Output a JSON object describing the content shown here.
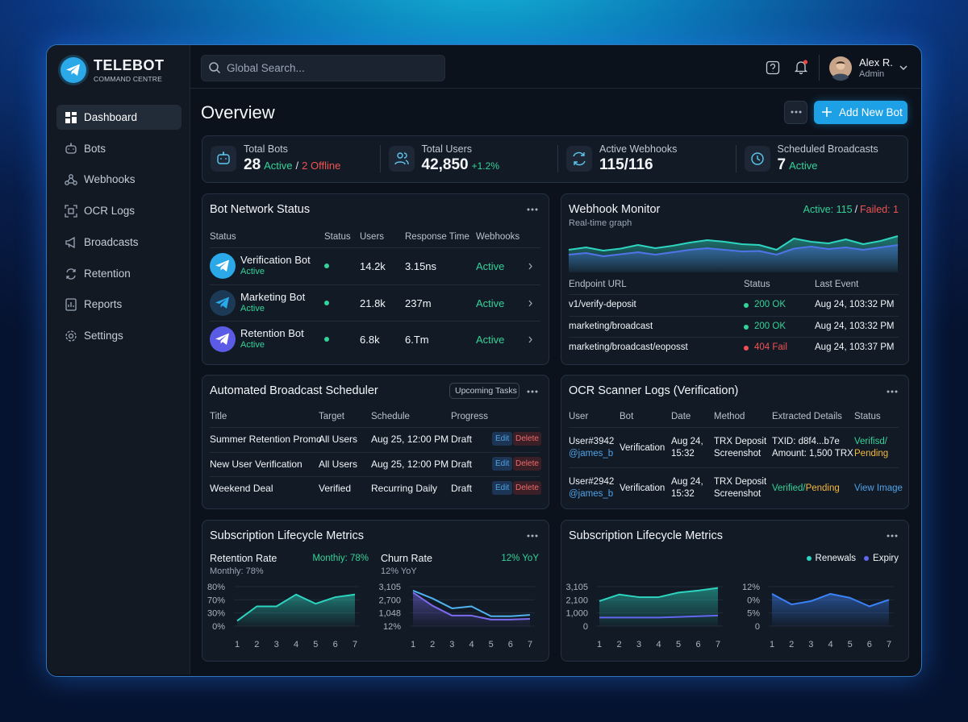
{
  "sidebar": {
    "brand": "TELEBOT",
    "tagline": "COMMAND CENTRE",
    "nav": [
      "Dashboard",
      "Bots",
      "Webhooks",
      "OCR Logs",
      "Broadcasts",
      "Retention",
      "Reports",
      "Settings"
    ],
    "active": 0
  },
  "topbar": {
    "search_placeholder": "Global Search...",
    "user": {
      "name": "Alex R.",
      "role": "Admin"
    }
  },
  "header": {
    "title": "Overview",
    "button": "Add New Bot"
  },
  "stats": [
    {
      "label": "Total Bots",
      "value": "28",
      "status": "Active",
      "separator": "/",
      "note": "2 Offline"
    },
    {
      "label": "Total Users",
      "value": "42,850",
      "change": "+1.2%"
    },
    {
      "label": "Active Webhooks",
      "value": "115/116"
    },
    {
      "label": "Scheduled Broadcasts",
      "value": "7",
      "status": "Active"
    }
  ],
  "bot_network": {
    "title": "Bot Network Status",
    "columns": [
      "Status",
      "Status",
      "Users",
      "Response Time",
      "Webhooks"
    ],
    "rows": [
      {
        "name": "Verification Bot",
        "status": "Active",
        "users": "14.2k",
        "response_time": "3.15ns",
        "webhook": "Active",
        "color": "#2aa8e8"
      },
      {
        "name": "Marketing Bot",
        "status": "Active",
        "users": "21.8k",
        "response_time": "237m",
        "webhook": "Active",
        "color": "#1c3a56"
      },
      {
        "name": "Retention Bot",
        "status": "Active",
        "users": "6.8k",
        "response_time": "6.Tm",
        "webhook": "Active",
        "color": "#5b5be6"
      }
    ]
  },
  "webhook_monitor": {
    "title": "Webhook Monitor",
    "subtitle": "Real-time graph",
    "active": "Active: 115",
    "separator": "/",
    "failed": "Failed: 1",
    "graph": {
      "ylim": [
        0,
        10
      ],
      "series": [
        {
          "color": "#2dd4bf",
          "fill": true,
          "values": [
            5.6,
            6.2,
            5.4,
            5.9,
            6.8,
            6.0,
            6.6,
            7.4,
            8.0,
            7.6,
            7.0,
            6.8,
            5.6,
            8.4,
            7.6,
            7.2,
            8.2,
            7.0,
            7.8,
            9.0
          ]
        },
        {
          "color": "#4f74e8",
          "fill": true,
          "values": [
            4.4,
            4.8,
            4.0,
            4.5,
            5.0,
            4.4,
            5.0,
            5.6,
            6.0,
            5.6,
            5.2,
            5.3,
            4.4,
            5.9,
            6.4,
            5.8,
            6.2,
            5.6,
            6.2,
            6.8
          ]
        }
      ]
    },
    "columns": [
      "Endpoint URL",
      "Status",
      "Last Event"
    ],
    "rows": [
      {
        "endpoint": "v1/verify-deposit",
        "status": "200 OK",
        "status_color": "#34d399",
        "last_event": "Aug 24, 103:32 PM"
      },
      {
        "endpoint": "marketing/broadcast",
        "status": "200 OK",
        "status_color": "#34d399",
        "last_event": "Aug 24, 103:32 PM"
      },
      {
        "endpoint": "marketing/broadcast/eoposst",
        "status": "404 Fail",
        "status_color": "#f05252",
        "last_event": "Aug 24, 103:37 PM"
      }
    ]
  },
  "scheduler": {
    "title": "Automated Broadcast Scheduler",
    "badge": "Upcoming Tasks",
    "columns": [
      "Title",
      "Target",
      "Schedule",
      "Progress"
    ],
    "actions": [
      "Edit",
      "Delete"
    ],
    "rows": [
      [
        "Summer Retention Promo",
        "All Users",
        "Aug 25, 12:00 PM",
        "Draft"
      ],
      [
        "New User Verification",
        "All Users",
        "Aug 25, 12:00 PM",
        "Draft"
      ],
      [
        "Weekend Deal",
        "Verified",
        "Recurring Daily",
        "Draft"
      ]
    ]
  },
  "ocr_logs": {
    "title": "OCR Scanner Logs (Verification)",
    "columns": [
      "User",
      "Bot",
      "Date",
      "Method",
      "Extracted Details",
      "Status"
    ],
    "rows": [
      {
        "cells": [
          [
            [
              "User#3942"
            ],
            [
              {
                "text": "@james_b",
                "color": "#4fa3e8"
              }
            ]
          ],
          [
            [
              "Verification"
            ]
          ],
          [
            [
              "Aug 24,"
            ],
            [
              "15:32"
            ]
          ],
          [
            [
              "TRX Deposit"
            ],
            [
              "Screenshot"
            ]
          ],
          [
            [
              "TXID: d8f4...b7e"
            ],
            [
              "Amount: 1,500 TRX"
            ]
          ],
          [
            [
              {
                "text": "Verifisd/",
                "color": "#34d399"
              }
            ],
            [
              {
                "text": "Pending",
                "color": "#f5b83d"
              }
            ]
          ]
        ]
      },
      {
        "cells": [
          [
            [
              "User#2942"
            ],
            [
              {
                "text": "@james_b",
                "color": "#4fa3e8"
              }
            ]
          ],
          [
            [
              "Verification"
            ]
          ],
          [
            [
              "Aug 24,"
            ],
            [
              "15:32"
            ]
          ],
          [
            [
              "TRX Deposit"
            ],
            [
              "Screenshot"
            ]
          ],
          [
            [
              {
                "text": "Verified/",
                "color": "#34d399"
              },
              {
                "text": "Pending",
                "color": "#f5b83d"
              }
            ]
          ],
          [
            [
              {
                "text": "View Image",
                "color": "#4fa3e8"
              }
            ]
          ]
        ]
      }
    ]
  },
  "metrics_left": {
    "title": "Subscription Lifecycle Metrics",
    "charts": [
      {
        "title": "Retention Rate",
        "highlight": "Monthiy: 78%",
        "subtitle": "Monthly: 78%",
        "ylim": [
          0,
          3
        ],
        "yticks": [
          {
            "value": 0,
            "label": "0%"
          },
          {
            "value": 1,
            "label": "30%"
          },
          {
            "value": 2,
            "label": "70%"
          },
          {
            "value": 3,
            "label": "80%"
          }
        ],
        "x": [
          1,
          2,
          3,
          4,
          5,
          6,
          7
        ],
        "xlim": [
          1,
          7
        ],
        "series": [
          {
            "color": "#2dd4bf",
            "fill": true,
            "values": [
              0.4,
              1.5,
              1.5,
              2.4,
              1.7,
              2.2,
              2.4
            ]
          }
        ]
      },
      {
        "title": "Churn Rate",
        "highlight": "12% YoY",
        "subtitle": "12% YoY",
        "ylim": [
          0,
          3
        ],
        "yticks": [
          {
            "value": 0,
            "label": "12%"
          },
          {
            "value": 1,
            "label": "1,048"
          },
          {
            "value": 2,
            "label": "2,700"
          },
          {
            "value": 3,
            "label": "3,105"
          }
        ],
        "x": [
          1,
          2,
          3,
          4,
          5,
          6,
          7
        ],
        "xlim": [
          1,
          7
        ],
        "series": [
          {
            "color": "#7c6cf0",
            "fill": true,
            "values": [
              2.55,
              1.55,
              0.8,
              0.8,
              0.5,
              0.5,
              0.55
            ]
          },
          {
            "color": "#4fb3f0",
            "fill": false,
            "values": [
              2.7,
              2.1,
              1.35,
              1.5,
              0.75,
              0.75,
              0.85
            ]
          }
        ]
      }
    ]
  },
  "metrics_right": {
    "title": "Subscription Lifecycle Metrics",
    "charts": [
      {
        "ylim": [
          0,
          3
        ],
        "yticks": [
          0,
          {
            "value": 1,
            "label": "1,000"
          },
          {
            "value": 2,
            "label": "2,100"
          },
          {
            "value": 3,
            "label": "3,105"
          }
        ],
        "x": [
          1,
          2,
          3,
          4,
          5,
          6,
          7
        ],
        "xlim": [
          1,
          7
        ],
        "series": [
          {
            "name": "Renewals",
            "color": "#2dd4bf",
            "fill": true,
            "values": [
              1.9,
              2.4,
              2.2,
              2.2,
              2.55,
              2.7,
              2.9
            ]
          },
          {
            "name": "Expiry",
            "color": "#6366f1",
            "fill": false,
            "values": [
              0.65,
              0.65,
              0.65,
              0.65,
              0.7,
              0.75,
              0.8
            ]
          }
        ]
      },
      {
        "ylim": [
          0,
          3
        ],
        "yticks": [
          0,
          {
            "value": 1,
            "label": "5%"
          },
          {
            "value": 2,
            "label": "0%"
          },
          {
            "value": 3,
            "label": "12%"
          }
        ],
        "x": [
          1,
          2,
          3,
          4,
          5,
          6,
          7
        ],
        "xlim": [
          1,
          7
        ],
        "series": [
          {
            "color": "#3b82f6",
            "fill": true,
            "values": [
              2.45,
              1.65,
              1.9,
              2.45,
              2.15,
              1.5,
              2.0
            ]
          }
        ]
      }
    ]
  }
}
